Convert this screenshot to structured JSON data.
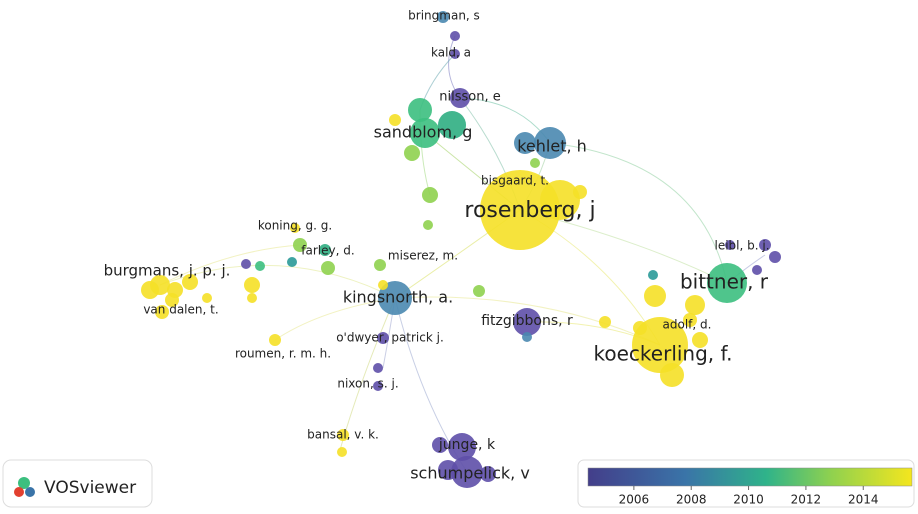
{
  "nodes": [
    {
      "label": "bringman, s"
    },
    {
      "label": "kald, a"
    },
    {
      "label": "nilsson, e"
    },
    {
      "label": "sandblom, g"
    },
    {
      "label": "kehlet, h"
    },
    {
      "label": "bisgaard, t."
    },
    {
      "label": "rosenberg, j"
    },
    {
      "label": "koning, g. g."
    },
    {
      "label": "farley, d."
    },
    {
      "label": "burgmans, j. p. j."
    },
    {
      "label": "van dalen, t."
    },
    {
      "label": "miserez, m."
    },
    {
      "label": "kingsnorth, a."
    },
    {
      "label": "fitzgibbons, r"
    },
    {
      "label": "bittner, r"
    },
    {
      "label": "leibl, b. j."
    },
    {
      "label": "adolf, d."
    },
    {
      "label": "koeckerling, f."
    },
    {
      "label": "roumen, r. m. h."
    },
    {
      "label": "o'dwyer, patrick j."
    },
    {
      "label": "nixon, s. j."
    },
    {
      "label": "bansal, v. k."
    },
    {
      "label": "junge, k"
    },
    {
      "label": "schumpelick, v"
    }
  ],
  "logo": {
    "text": "VOSviewer"
  },
  "legend": {
    "range": [
      2004.4,
      2015.7
    ],
    "ticks": [
      2006,
      2008,
      2010,
      2012,
      2014
    ]
  }
}
